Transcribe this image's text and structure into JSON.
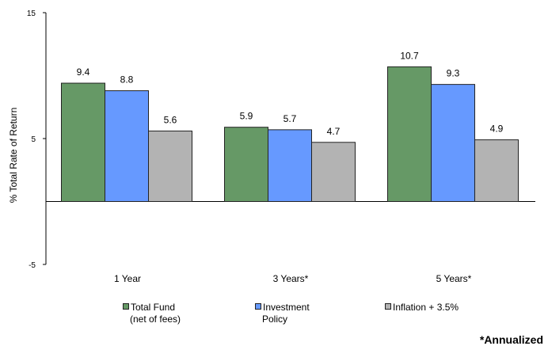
{
  "chart_data": {
    "type": "bar",
    "title": "",
    "xlabel": "",
    "ylabel": "% Total Rate of Return",
    "ylim": [
      -5,
      15
    ],
    "yticks": [
      "15",
      "5",
      "-5"
    ],
    "categories": [
      "1 Year",
      "3 Years*",
      "5 Years*"
    ],
    "series": [
      {
        "name_line1": "Total Fund",
        "name_line2": "(net of fees)",
        "color": "#669966",
        "values": [
          9.4,
          5.9,
          10.7
        ],
        "labels": [
          "9.4",
          "5.9",
          "10.7"
        ]
      },
      {
        "name_line1": "Investment",
        "name_line2": "Policy",
        "color": "#6699ff",
        "values": [
          8.8,
          5.7,
          9.3
        ],
        "labels": [
          "8.8",
          "5.7",
          "9.3"
        ]
      },
      {
        "name_line1": "Inflation + 3.5%",
        "name_line2": "",
        "color": "#b3b3b3",
        "values": [
          5.6,
          4.7,
          4.9
        ],
        "labels": [
          "5.6",
          "4.7",
          "4.9"
        ]
      }
    ],
    "grid": false,
    "legend_position": "bottom"
  },
  "footnote": "*Annualized"
}
